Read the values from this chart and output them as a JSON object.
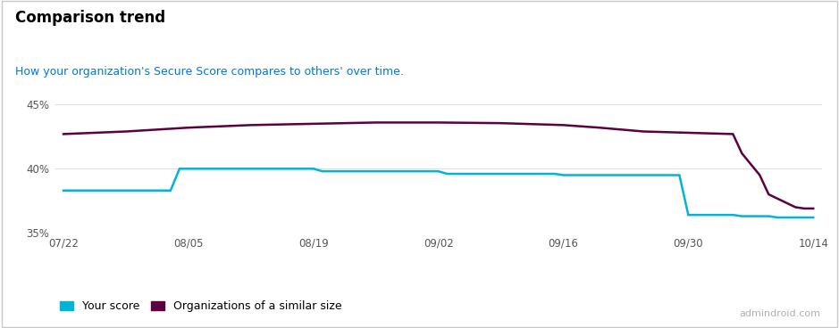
{
  "title": "Comparison trend",
  "subtitle": "How your organization's Secure Score compares to others' over time.",
  "subtitle_color": "#0078d4",
  "title_color": "#000000",
  "watermark": "admindroid.com",
  "background_color": "#ffffff",
  "border_color": "#c8c8c8",
  "x_labels": [
    "07/22",
    "08/05",
    "08/19",
    "09/02",
    "09/16",
    "09/30",
    "10/14"
  ],
  "x_positions": [
    0,
    14,
    28,
    42,
    56,
    70,
    84
  ],
  "your_score_color": "#00b4d8",
  "org_score_color": "#5c0040",
  "your_score_x": [
    0,
    12,
    13,
    28,
    29,
    42,
    43,
    55,
    56,
    69,
    70,
    75,
    76,
    79,
    80,
    84
  ],
  "your_score_y": [
    38.3,
    38.3,
    40.0,
    40.0,
    39.8,
    39.8,
    39.6,
    39.6,
    39.5,
    39.5,
    36.4,
    36.4,
    36.3,
    36.3,
    36.2,
    36.2
  ],
  "org_score_x": [
    0,
    7,
    14,
    21,
    28,
    35,
    42,
    49,
    56,
    60,
    65,
    70,
    75,
    76,
    78,
    79,
    82,
    83,
    84
  ],
  "org_score_y": [
    42.7,
    42.9,
    43.2,
    43.4,
    43.5,
    43.6,
    43.6,
    43.55,
    43.4,
    43.2,
    42.9,
    42.8,
    42.7,
    41.2,
    39.5,
    38.0,
    37.0,
    36.9,
    36.9
  ],
  "ylim": [
    35.0,
    46.5
  ],
  "yticks": [
    35,
    40,
    45
  ],
  "ytick_labels": [
    "35%",
    "40%",
    "45%"
  ],
  "grid_color": "#e0e0e0",
  "legend_your_score": "Your score",
  "legend_org_score": "Organizations of a similar size",
  "xlim": [
    -1,
    85
  ]
}
